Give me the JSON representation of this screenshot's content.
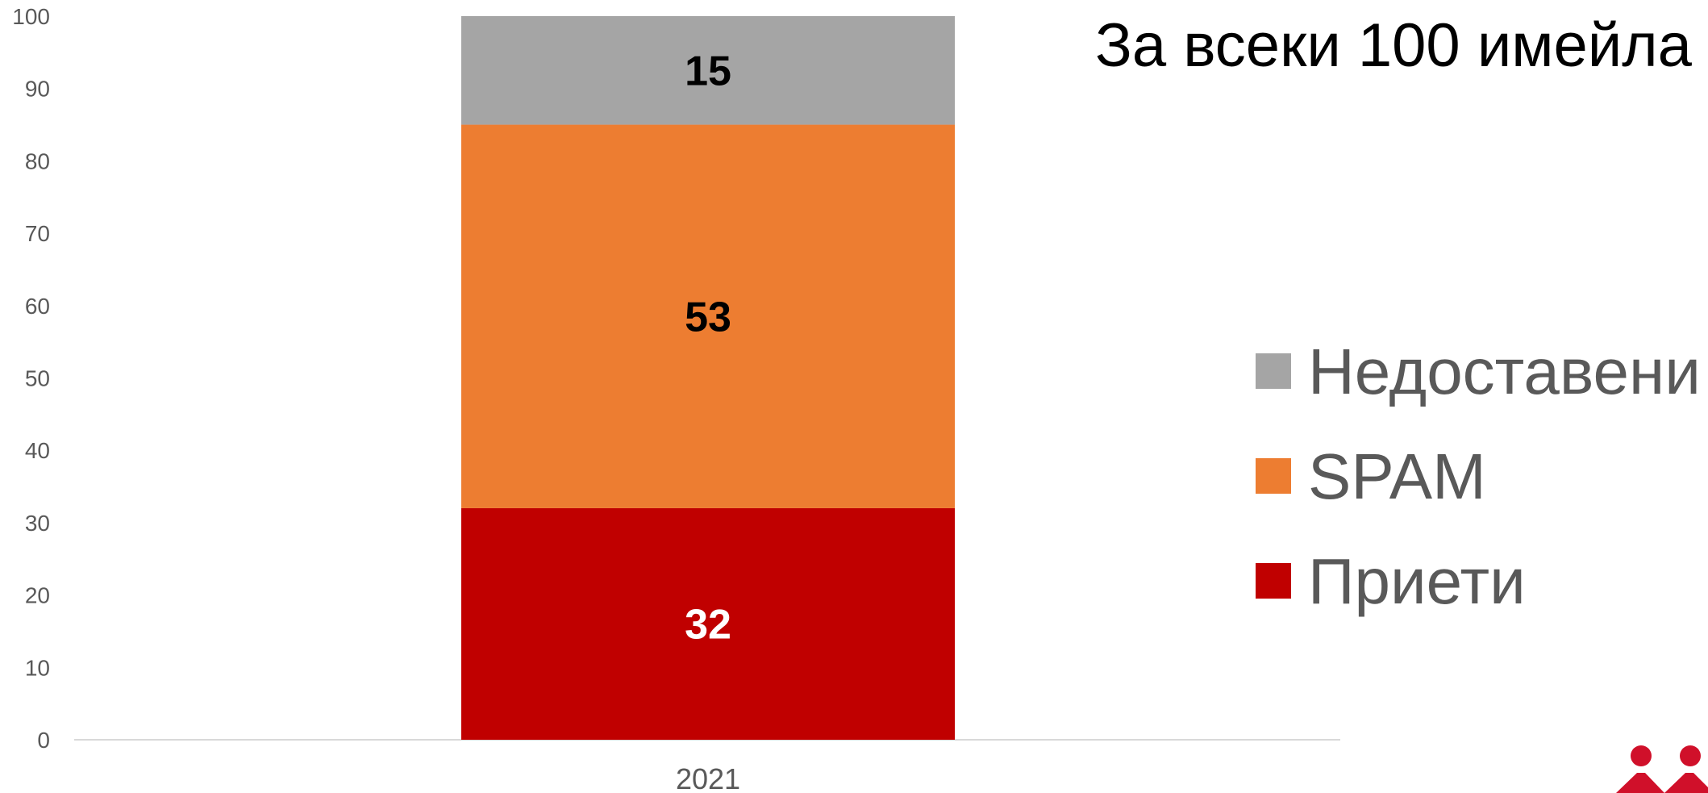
{
  "chart_data": {
    "type": "bar",
    "stacked": true,
    "title": "За всеки 100 имейла",
    "categories": [
      "2021"
    ],
    "ylim": [
      0,
      100
    ],
    "yticks": [
      0,
      10,
      20,
      30,
      40,
      50,
      60,
      70,
      80,
      90,
      100
    ],
    "series": [
      {
        "name": "Приети",
        "values": [
          32
        ],
        "color": "#C00000",
        "label_color": "#FFFFFF"
      },
      {
        "name": "SPAM",
        "values": [
          53
        ],
        "color": "#ED7D31",
        "label_color": "#000000"
      },
      {
        "name": "Недоставени",
        "values": [
          15
        ],
        "color": "#A5A5A5",
        "label_color": "#000000"
      }
    ],
    "legend_order": [
      "Недоставени",
      "SPAM",
      "Приети"
    ],
    "legend_position": "right",
    "grid": false,
    "axis_color": "#D9D9D9"
  },
  "logo": {
    "name": "logo-mark",
    "color": "#D0102A"
  }
}
